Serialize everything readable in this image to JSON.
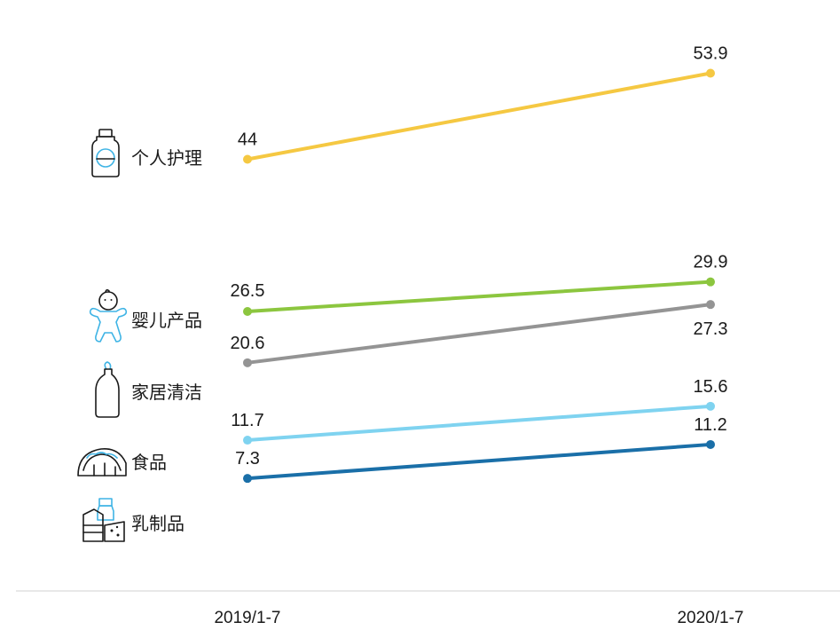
{
  "chart_data": {
    "type": "line",
    "title": "",
    "xlabel": "",
    "ylabel": "",
    "x": [
      "2019/1-7",
      "2020/1-7"
    ],
    "ylim": [
      0,
      60
    ],
    "grid": false,
    "series": [
      {
        "name": "个人护理",
        "icon": "lotion-bottle-icon",
        "color": "#f5c842",
        "values": [
          44,
          53.9
        ]
      },
      {
        "name": "婴儿产品",
        "icon": "baby-icon",
        "color": "#8cc63f",
        "values": [
          26.5,
          29.9
        ]
      },
      {
        "name": "家居清洁",
        "icon": "cleaner-bottle-icon",
        "color": "#949494",
        "values": [
          20.6,
          27.3
        ]
      },
      {
        "name": "食品",
        "icon": "taco-icon",
        "color": "#7fd3f0",
        "values": [
          11.7,
          15.6
        ]
      },
      {
        "name": "乳制品",
        "icon": "dairy-products-icon",
        "color": "#1a6fa8",
        "values": [
          7.3,
          11.2
        ]
      }
    ]
  }
}
